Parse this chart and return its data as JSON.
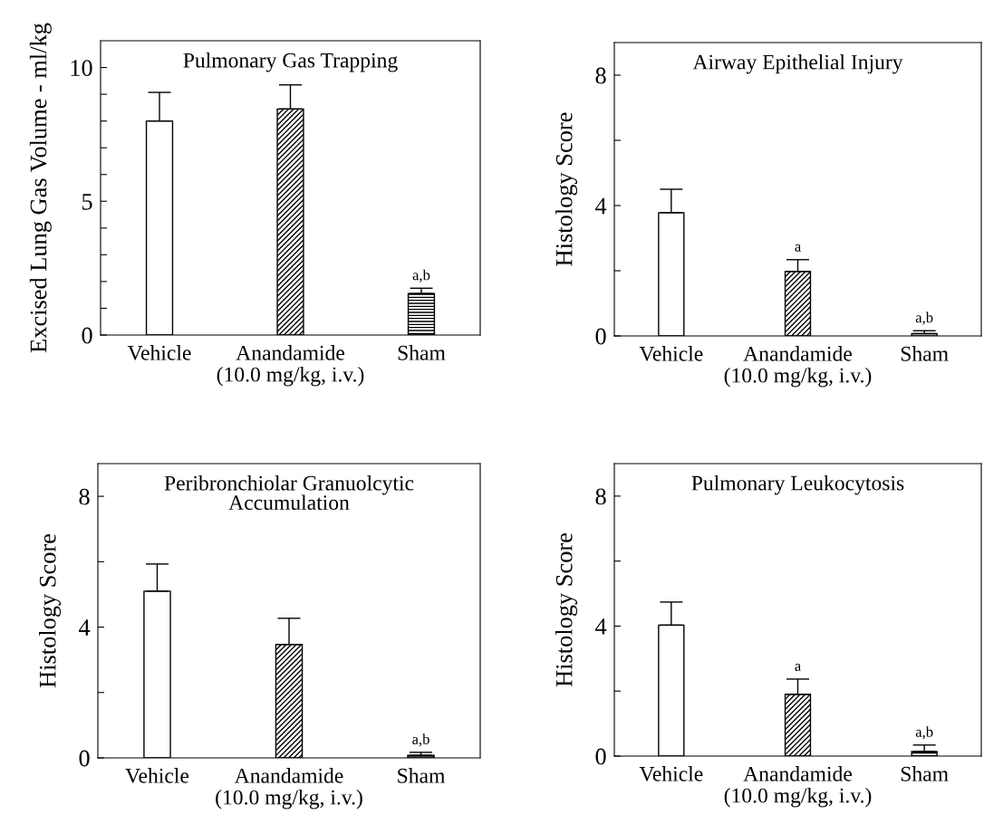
{
  "chart_data": [
    {
      "type": "bar",
      "title": "Pulmonary Gas Trapping",
      "ylabel": "Excised Lung Gas Volume - ml/kg",
      "categories": [
        "Vehicle",
        "Anandamide\n(10.0 mg/kg, i.v.)",
        "Sham"
      ],
      "values": [
        8.0,
        8.45,
        1.55
      ],
      "errors": [
        [
          8.0,
          9.07
        ],
        [
          8.45,
          9.35
        ],
        [
          1.55,
          1.75
        ]
      ],
      "colors": [
        "#ffffff",
        "#000000",
        "#000000"
      ],
      "value_labels": [
        null,
        null,
        "a,b"
      ],
      "ylim": [
        0,
        11
      ],
      "yticks": [
        0,
        {
          "value": 1,
          "label": null
        },
        {
          "value": 2,
          "label": null
        },
        {
          "value": 3,
          "label": null
        },
        {
          "value": 4,
          "label": null
        },
        5,
        {
          "value": 6,
          "label": null
        },
        {
          "value": 7,
          "label": null
        },
        {
          "value": 8,
          "label": null
        },
        {
          "value": 9,
          "label": null
        },
        10
      ],
      "grid": false,
      "legend": false
    },
    {
      "type": "bar",
      "title": "Airway Epithelial Injury",
      "ylabel": "Histology Score",
      "categories": [
        "Vehicle",
        "Anandamide\n(10.0 mg/kg, i.v.)",
        "Sham"
      ],
      "values": [
        3.78,
        1.98,
        0.07
      ],
      "errors": [
        [
          3.78,
          4.5
        ],
        [
          1.98,
          2.34
        ],
        [
          0.07,
          0.16
        ]
      ],
      "colors": [
        "#ffffff",
        "#000000",
        "#000000"
      ],
      "value_labels": [
        null,
        "a",
        "a,b"
      ],
      "ylim": [
        0,
        9
      ],
      "yticks": [
        0,
        {
          "value": 2,
          "label": null
        },
        4,
        {
          "value": 6,
          "label": null
        },
        8
      ],
      "grid": false,
      "legend": false
    },
    {
      "type": "bar",
      "title": "Peribronchiolar Granuolcytic\nAccumulation",
      "ylabel": "Histology Score",
      "categories": [
        "Vehicle",
        "Anandamide\n(10.0 mg/kg, i.v.)",
        "Sham"
      ],
      "values": [
        5.1,
        3.47,
        0.08
      ],
      "errors": [
        [
          5.1,
          5.93
        ],
        [
          3.47,
          4.27
        ],
        [
          0.08,
          0.17
        ]
      ],
      "colors": [
        "#ffffff",
        "#000000",
        "#000000"
      ],
      "value_labels": [
        null,
        null,
        "a,b"
      ],
      "ylim": [
        0,
        9
      ],
      "yticks": [
        0,
        {
          "value": 2,
          "label": null
        },
        4,
        {
          "value": 6,
          "label": null
        },
        8
      ],
      "grid": false,
      "legend": false
    },
    {
      "type": "bar",
      "title": "Pulmonary Leukocytosis",
      "ylabel": "Histology Score",
      "categories": [
        "Vehicle",
        "Anandamide\n(10.0 mg/kg, i.v.)",
        "Sham"
      ],
      "values": [
        4.03,
        1.9,
        0.14
      ],
      "errors": [
        [
          4.03,
          4.74
        ],
        [
          1.9,
          2.37
        ],
        [
          0.14,
          0.34
        ]
      ],
      "colors": [
        "#ffffff",
        "#000000",
        "#000000"
      ],
      "value_labels": [
        null,
        "a",
        "a,b"
      ],
      "ylim": [
        0,
        9
      ],
      "yticks": [
        0,
        {
          "value": 2,
          "label": null
        },
        4,
        {
          "value": 6,
          "label": null
        },
        8
      ],
      "grid": false,
      "legend": false
    }
  ]
}
